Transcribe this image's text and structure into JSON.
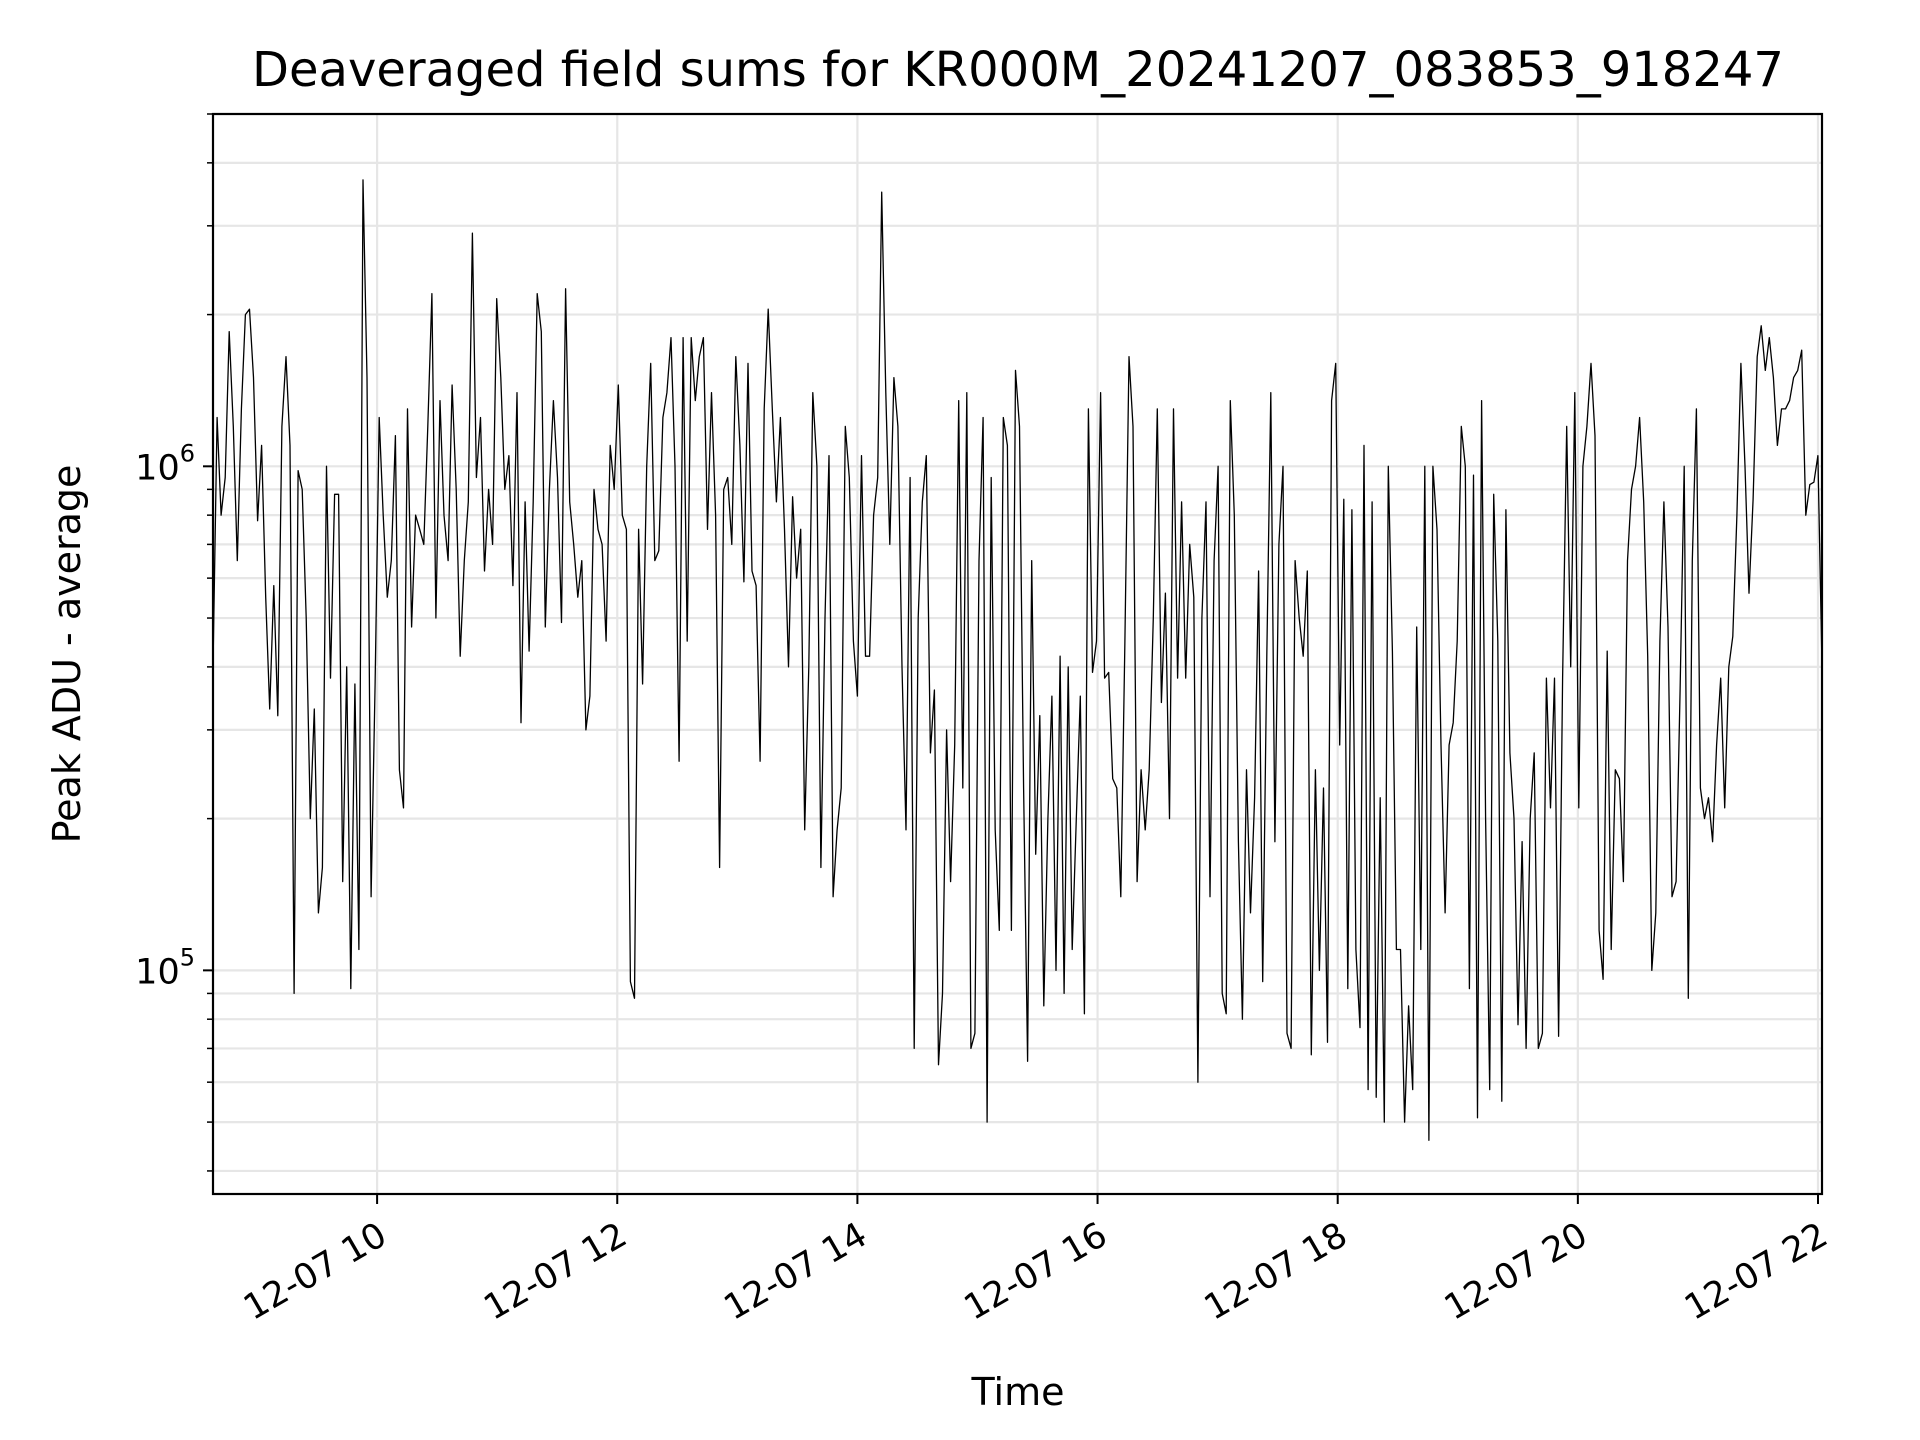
{
  "chart_data": {
    "type": "line",
    "title": "Deaveraged field sums for KR000M_20241207_083853_918247",
    "xlabel": "Time",
    "ylabel": "Peak ADU - average",
    "yscale": "log",
    "ylim": [
      36000,
      5000000
    ],
    "xlim": [
      "2024-12-07 08:38",
      "2024-12-07 22:02"
    ],
    "grid": true,
    "x_ticks": [
      "12-07 10",
      "12-07 12",
      "12-07 14",
      "12-07 16",
      "12-07 18",
      "12-07 20",
      "12-07 22"
    ],
    "y_ticks": [
      {
        "base": "10",
        "exp": "5"
      },
      {
        "base": "10",
        "exp": "6"
      }
    ],
    "line_color": "#000000",
    "series": [
      {
        "start": "2024-12-07 08:38",
        "end": "2024-12-07 22:02",
        "values": [
          400000,
          1250000,
          800000,
          950000,
          1850000,
          1200000,
          650000,
          1300000,
          2000000,
          2050000,
          1500000,
          780000,
          1100000,
          550000,
          330000,
          580000,
          320000,
          1200000,
          1650000,
          1100000,
          90000,
          980000,
          900000,
          500000,
          200000,
          330000,
          130000,
          160000,
          1000000,
          380000,
          880000,
          880000,
          150000,
          400000,
          92000,
          370000,
          110000,
          3700000,
          1500000,
          140000,
          370000,
          1250000,
          800000,
          550000,
          650000,
          1150000,
          250000,
          210000,
          1300000,
          480000,
          800000,
          750000,
          700000,
          1200000,
          2200000,
          500000,
          1350000,
          800000,
          650000,
          1450000,
          900000,
          420000,
          650000,
          850000,
          2900000,
          950000,
          1250000,
          620000,
          900000,
          700000,
          2150000,
          1500000,
          900000,
          1050000,
          580000,
          1400000,
          310000,
          850000,
          430000,
          850000,
          2200000,
          1850000,
          480000,
          900000,
          1350000,
          950000,
          490000,
          2250000,
          850000,
          700000,
          550000,
          650000,
          300000,
          350000,
          900000,
          750000,
          700000,
          450000,
          1100000,
          900000,
          1450000,
          800000,
          750000,
          95000,
          88000,
          750000,
          370000,
          1000000,
          1600000,
          650000,
          680000,
          1250000,
          1400000,
          1800000,
          1000000,
          260000,
          1800000,
          450000,
          1800000,
          1350000,
          1650000,
          1800000,
          750000,
          1400000,
          800000,
          160000,
          900000,
          950000,
          700000,
          1650000,
          1100000,
          590000,
          1600000,
          620000,
          580000,
          260000,
          1300000,
          2050000,
          1300000,
          850000,
          1250000,
          750000,
          400000,
          870000,
          600000,
          750000,
          190000,
          400000,
          1400000,
          1000000,
          160000,
          500000,
          1050000,
          140000,
          190000,
          230000,
          1200000,
          950000,
          450000,
          350000,
          1050000,
          420000,
          420000,
          800000,
          950000,
          3500000,
          1400000,
          700000,
          1500000,
          1200000,
          400000,
          190000,
          950000,
          70000,
          500000,
          850000,
          1050000,
          270000,
          360000,
          65000,
          90000,
          300000,
          150000,
          280000,
          1350000,
          230000,
          1400000,
          70000,
          75000,
          650000,
          1250000,
          50000,
          950000,
          190000,
          120000,
          1250000,
          1100000,
          120000,
          1550000,
          1200000,
          230000,
          66000,
          650000,
          170000,
          320000,
          85000,
          200000,
          350000,
          100000,
          420000,
          90000,
          400000,
          110000,
          200000,
          350000,
          82000,
          1300000,
          390000,
          450000,
          1400000,
          380000,
          390000,
          240000,
          230000,
          140000,
          450000,
          1650000,
          1200000,
          150000,
          250000,
          190000,
          250000,
          500000,
          1300000,
          340000,
          560000,
          200000,
          1300000,
          380000,
          850000,
          380000,
          700000,
          550000,
          60000,
          500000,
          850000,
          140000,
          650000,
          1000000,
          90000,
          82000,
          1350000,
          800000,
          180000,
          80000,
          250000,
          130000,
          220000,
          620000,
          95000,
          420000,
          1400000,
          180000,
          700000,
          1000000,
          75000,
          70000,
          650000,
          500000,
          420000,
          620000,
          68000,
          250000,
          100000,
          230000,
          72000,
          1350000,
          1600000,
          280000,
          860000,
          92000,
          820000,
          110000,
          77000,
          1100000,
          58000,
          850000,
          56000,
          220000,
          50000,
          1000000,
          430000,
          110000,
          110000,
          50000,
          85000,
          58000,
          480000,
          110000,
          1000000,
          46000,
          1000000,
          750000,
          280000,
          130000,
          280000,
          310000,
          450000,
          1200000,
          1000000,
          92000,
          960000,
          51000,
          1350000,
          200000,
          58000,
          880000,
          450000,
          55000,
          820000,
          270000,
          200000,
          78000,
          180000,
          70000,
          200000,
          270000,
          70000,
          75000,
          380000,
          210000,
          380000,
          74000,
          380000,
          1200000,
          400000,
          1400000,
          210000,
          1000000,
          1200000,
          1600000,
          1150000,
          120000,
          96000,
          430000,
          110000,
          250000,
          240000,
          150000,
          650000,
          900000,
          1000000,
          1250000,
          850000,
          420000,
          100000,
          130000,
          450000,
          850000,
          480000,
          140000,
          150000,
          360000,
          1000000,
          88000,
          650000,
          1300000,
          230000,
          200000,
          220000,
          180000,
          280000,
          380000,
          210000,
          400000,
          460000,
          800000,
          1600000,
          1000000,
          560000,
          860000,
          1650000,
          1900000,
          1550000,
          1800000,
          1500000,
          1100000,
          1300000,
          1300000,
          1350000,
          1500000,
          1550000,
          1700000,
          800000,
          920000,
          930000,
          1050000,
          400000
        ]
      }
    ]
  }
}
